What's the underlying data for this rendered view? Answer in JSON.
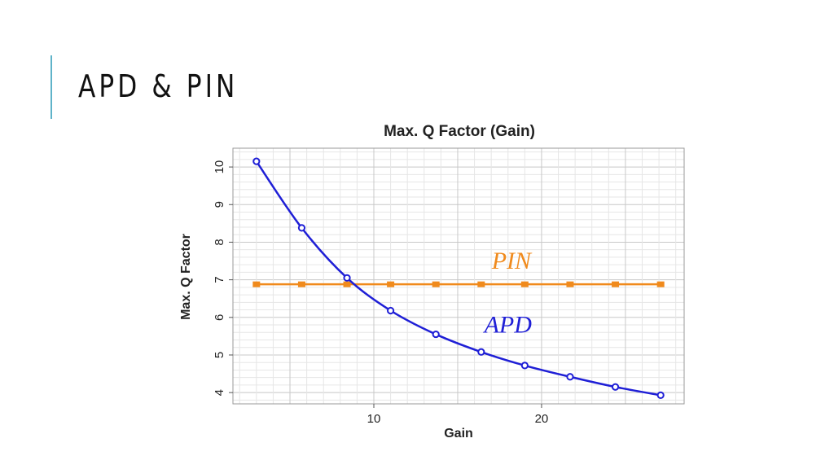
{
  "slide": {
    "title": "APD & PIN"
  },
  "colors": {
    "accent": "#5fb3c9",
    "apd": "#1f1fd6",
    "pin": "#f08a1c",
    "grid_major": "#c8c8c8",
    "grid_minor": "#e6e6e6"
  },
  "chart_data": {
    "type": "line",
    "title": "Max. Q Factor (Gain)",
    "xlabel": "Gain",
    "ylabel": "Max. Q Factor",
    "xlim": [
      1.6,
      28.5
    ],
    "ylim": [
      3.7,
      10.5
    ],
    "xticks": [
      10,
      20
    ],
    "yticks": [
      4,
      5,
      6,
      7,
      8,
      9,
      10
    ],
    "grid": true,
    "series": [
      {
        "name": "APD",
        "color": "#1f1fd6",
        "x": [
          3,
          5.7,
          8.4,
          11,
          13.7,
          16.4,
          19,
          21.7,
          24.4,
          27.1
        ],
        "y": [
          10.15,
          8.38,
          7.05,
          6.18,
          5.55,
          5.08,
          4.72,
          4.42,
          4.15,
          3.93
        ]
      },
      {
        "name": "PIN",
        "color": "#f08a1c",
        "x": [
          3,
          5.7,
          8.4,
          11,
          13.7,
          16.4,
          19,
          21.7,
          24.4,
          27.1
        ],
        "y": [
          6.88,
          6.88,
          6.88,
          6.88,
          6.88,
          6.88,
          6.88,
          6.88,
          6.88,
          6.88
        ]
      }
    ],
    "annotations": [
      {
        "text": "PIN",
        "x": 18.2,
        "y": 7.3,
        "series": "PIN"
      },
      {
        "text": "APD",
        "x": 18.0,
        "y": 5.6,
        "series": "APD"
      }
    ]
  }
}
